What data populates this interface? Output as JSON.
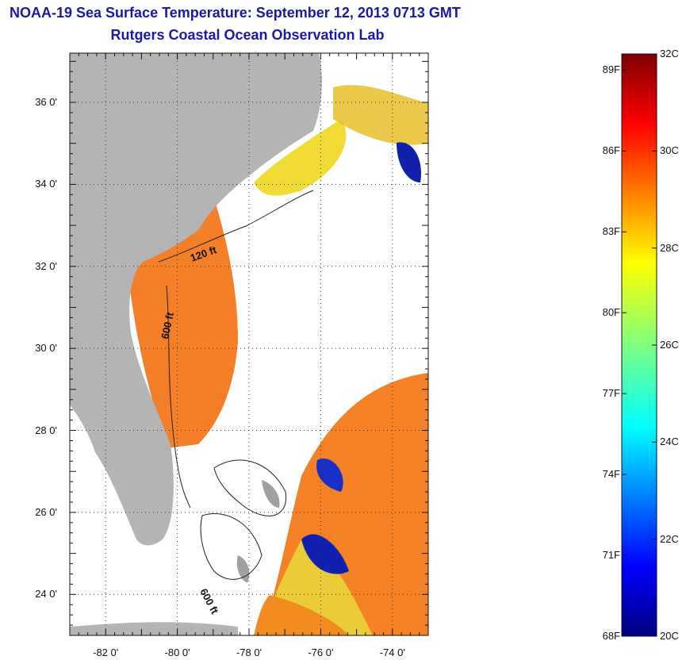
{
  "title": {
    "line1": "NOAA-19 Sea Surface Temperature:  September 12, 2013 0713 GMT",
    "line2": "Rutgers Coastal Ocean Observation Lab"
  },
  "map": {
    "lon_ticks": [
      "-82 0'",
      "-80 0'",
      "-78 0'",
      "-76 0'",
      "-74 0'"
    ],
    "lat_ticks": [
      "36 0'",
      "34 0'",
      "32 0'",
      "30 0'",
      "28 0'",
      "26 0'",
      "24 0'"
    ],
    "lon_values": [
      -82,
      -80,
      -78,
      -76,
      -74
    ],
    "lat_values": [
      36,
      34,
      32,
      30,
      28,
      26,
      24
    ],
    "lon_range": [
      -83,
      -73
    ],
    "lat_range": [
      23,
      37.2
    ],
    "grid": "dotted",
    "isobath_labels": [
      "120 ft",
      "600 ft",
      "600 ft"
    ],
    "colors": {
      "land": "#b4b4b4",
      "cloud": "#ffffff"
    }
  },
  "colorbar": {
    "f_labels": [
      "89F",
      "86F",
      "83F",
      "80F",
      "77F",
      "74F",
      "71F",
      "68F"
    ],
    "f_values": [
      89,
      86,
      83,
      80,
      77,
      74,
      71,
      68
    ],
    "c_labels": [
      "32C",
      "30C",
      "28C",
      "26C",
      "24C",
      "22C",
      "20C"
    ],
    "c_values": [
      32,
      30,
      28,
      26,
      24,
      22,
      20
    ],
    "c_range": [
      20,
      32
    ],
    "colormap": "jet"
  }
}
